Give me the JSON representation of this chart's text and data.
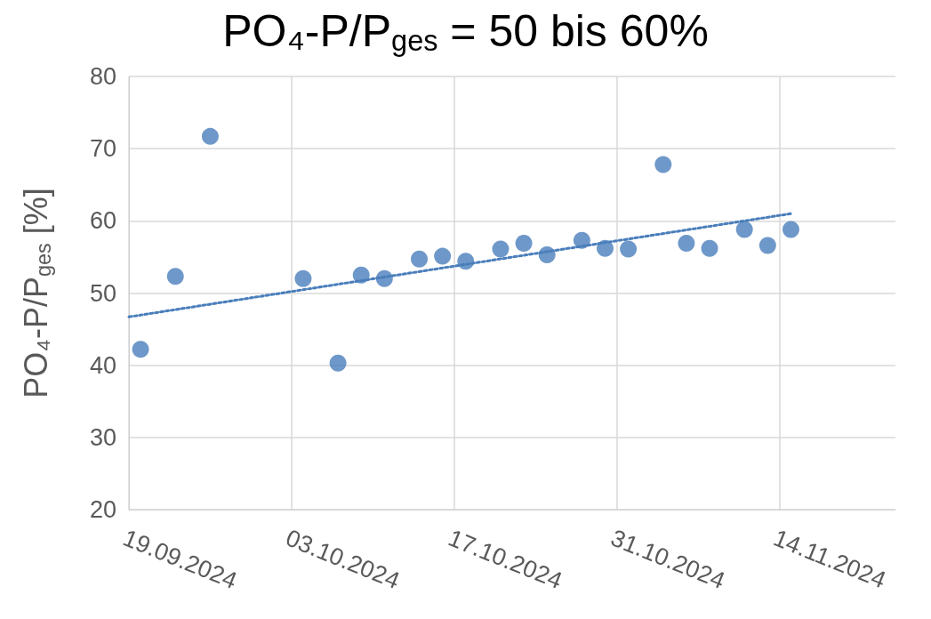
{
  "chart_data": {
    "type": "scatter",
    "title": "PO₄-P/P$_{ges}$ = 50 bis 60%",
    "ylabel": "PO₄-P/P$_{ges}$ [%]",
    "series": [
      {
        "color": "#4a7ebb",
        "marker": "circle",
        "x": [
          "2024-09-20",
          "2024-09-23",
          "2024-09-26",
          "2024-10-04",
          "2024-10-07",
          "2024-10-09",
          "2024-10-11",
          "2024-10-14",
          "2024-10-16",
          "2024-10-18",
          "2024-10-21",
          "2024-10-23",
          "2024-10-25",
          "2024-10-28",
          "2024-10-30",
          "2024-11-01",
          "2024-11-04",
          "2024-11-06",
          "2024-11-08",
          "2024-11-11",
          "2024-11-13",
          "2024-11-15"
        ],
        "values": [
          42.2,
          52.3,
          71.7,
          52.0,
          40.3,
          52.5,
          52.0,
          54.7,
          55.1,
          54.4,
          56.1,
          56.9,
          55.3,
          57.3,
          56.2,
          56.1,
          67.8,
          56.9,
          56.2,
          58.8,
          56.6,
          58.8
        ]
      },
      {
        "type": "line",
        "color": "#4a7ebb",
        "marker": "none",
        "line_style": "dotted",
        "x": [
          "2024-09-19",
          "2024-11-15"
        ],
        "values": [
          46.7,
          61.0
        ]
      }
    ],
    "xlim": [
      "2024-09-19",
      "2024-11-24"
    ],
    "xticks": [
      {
        "value": "2024-09-19",
        "label": "19.09.2024"
      },
      {
        "value": "2024-10-03",
        "label": "03.10.2024"
      },
      {
        "value": "2024-10-17",
        "label": "17.10.2024"
      },
      {
        "value": "2024-10-31",
        "label": "31.10.2024"
      },
      {
        "value": "2024-11-14",
        "label": "14.11.2024"
      }
    ],
    "ylim": [
      20,
      80
    ],
    "yticks": [
      20,
      30,
      40,
      50,
      60,
      70,
      80
    ],
    "grid": true
  }
}
